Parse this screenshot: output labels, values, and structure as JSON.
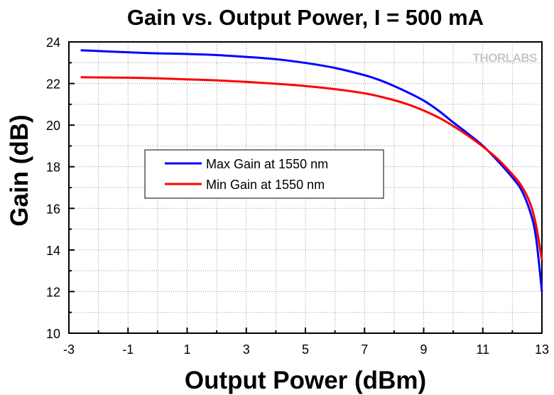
{
  "chart_data": {
    "type": "line",
    "title": "Gain vs. Output Power, I = 500 mA",
    "xlabel": "Output Power (dBm)",
    "ylabel": "Gain (dB)",
    "xlim": [
      -3,
      13
    ],
    "ylim": [
      10,
      24
    ],
    "xticks": [
      -3,
      -1,
      1,
      3,
      5,
      7,
      9,
      11,
      13
    ],
    "yticks": [
      10,
      12,
      14,
      16,
      18,
      20,
      22,
      24
    ],
    "xtick_labels": [
      "-3",
      "-1",
      "1",
      "3",
      "5",
      "7",
      "9",
      "11",
      "13"
    ],
    "ytick_labels": [
      "10",
      "12",
      "14",
      "16",
      "18",
      "20",
      "22",
      "24"
    ],
    "grid": true,
    "legend_position": "center-left",
    "watermark": "THORLABS",
    "series": [
      {
        "name": "Max Gain at 1550 nm",
        "color": "#0000ff",
        "x": [
          -2.6,
          -1,
          0,
          1,
          2,
          3,
          4,
          5,
          6,
          7,
          7.5,
          8,
          8.5,
          9,
          9.5,
          10,
          10.5,
          11,
          11.5,
          12,
          12.3,
          12.6,
          12.8,
          13.0
        ],
        "y": [
          23.6,
          23.5,
          23.45,
          23.42,
          23.37,
          23.28,
          23.17,
          22.99,
          22.75,
          22.4,
          22.17,
          21.88,
          21.55,
          21.18,
          20.7,
          20.13,
          19.59,
          19.01,
          18.29,
          17.48,
          16.9,
          15.85,
          14.6,
          12.0
        ]
      },
      {
        "name": "Min Gain at 1550 nm",
        "color": "#ff0000",
        "x": [
          -2.6,
          -1,
          0,
          1,
          2,
          3,
          4,
          5,
          6,
          7,
          7.5,
          8,
          8.5,
          9,
          9.5,
          10,
          10.5,
          11,
          11.5,
          12,
          12.3,
          12.6,
          12.8,
          13.0
        ],
        "y": [
          22.3,
          22.28,
          22.25,
          22.2,
          22.15,
          22.08,
          21.99,
          21.88,
          21.73,
          21.53,
          21.38,
          21.2,
          20.98,
          20.7,
          20.37,
          19.96,
          19.49,
          18.97,
          18.38,
          17.63,
          17.1,
          16.25,
          15.2,
          13.5
        ]
      }
    ]
  }
}
